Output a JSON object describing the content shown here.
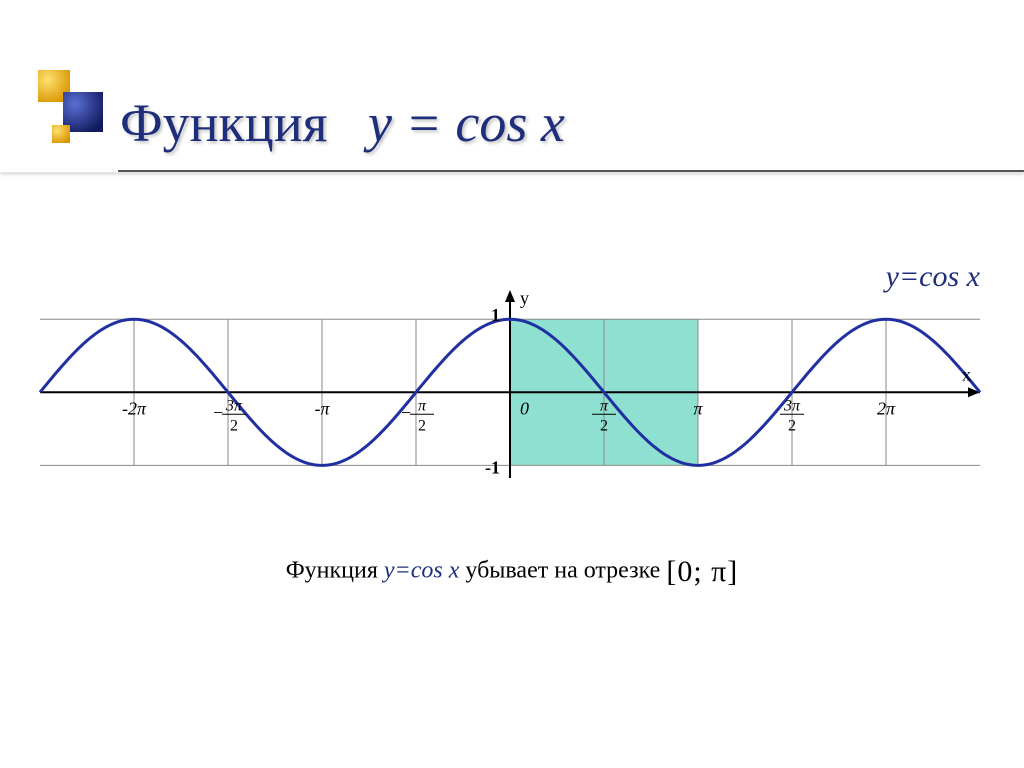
{
  "title": {
    "word": "Функция",
    "func_y": "y",
    "func_eq": " = ",
    "func_cos": "cos x"
  },
  "graph_label": "y=cos x",
  "caption": {
    "t1": "Функция  ",
    "func": "y=cos x",
    "t2": "  убывает на отрезке  ",
    "interval": "[0; π]"
  },
  "chart": {
    "type": "line",
    "function": "cos",
    "x_range_pi": [
      -2.5,
      2.5
    ],
    "y_range": [
      -1.2,
      1.4
    ],
    "highlight_x_pi": [
      0,
      1
    ],
    "highlight_color": "#8ee0d0",
    "curve_color": "#2030a0",
    "curve_width": 3,
    "grid_color": "#888888",
    "axis_color": "#000000",
    "axis_width": 2,
    "background": "#ffffff",
    "xticks": [
      {
        "v": -2,
        "label": "-2π"
      },
      {
        "v": -1.5,
        "label": "",
        "frac": [
          "3π",
          "2"
        ],
        "neg": true
      },
      {
        "v": -1,
        "label": "-π"
      },
      {
        "v": -0.5,
        "label": "",
        "frac": [
          "π",
          "2"
        ],
        "neg": true
      },
      {
        "v": 0,
        "label": "0"
      },
      {
        "v": 0.5,
        "label": "",
        "frac": [
          "π",
          "2"
        ]
      },
      {
        "v": 1,
        "label": "π"
      },
      {
        "v": 1.5,
        "label": "",
        "frac": [
          "3π",
          "2"
        ]
      },
      {
        "v": 2,
        "label": "2π"
      }
    ],
    "yticks": [
      {
        "v": 1,
        "label": "1"
      },
      {
        "v": -1,
        "label": "-1"
      }
    ],
    "axis_labels": {
      "x": "x",
      "y": "y"
    },
    "tick_fontsize": 18,
    "axis_label_fontsize": 18
  },
  "deco": {
    "yellow": "#f4ba1b",
    "blue": "#2a3b9a"
  }
}
